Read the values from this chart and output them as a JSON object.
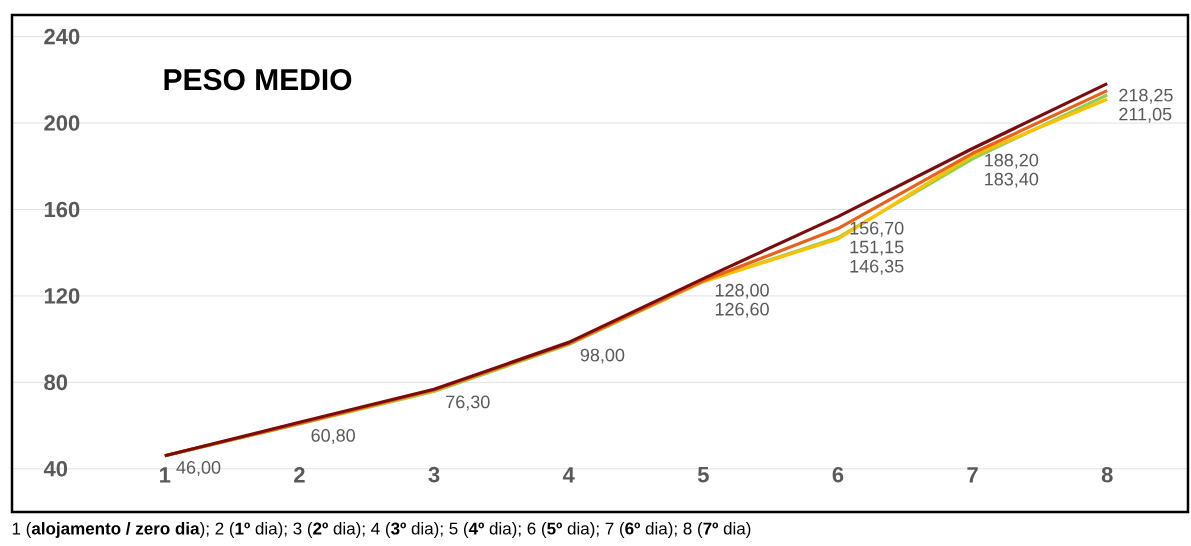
{
  "chart_data": {
    "type": "line",
    "title": "PESO MEDIO",
    "categories": [
      "1",
      "2",
      "3",
      "4",
      "5",
      "6",
      "7",
      "8"
    ],
    "series": [
      {
        "color": "#92d050",
        "values": [
          46,
          60.8,
          75.8,
          97.5,
          126.6,
          147,
          183.4,
          213
        ],
        "value_labels": [
          "46,00",
          "60,80",
          null,
          null,
          "126,60",
          null,
          "183,40",
          null
        ]
      },
      {
        "color": "#ffc000",
        "values": [
          46,
          61,
          76.3,
          98,
          126.6,
          146.35,
          185,
          211.05
        ],
        "value_labels": [
          null,
          null,
          "76,30",
          "98,00",
          null,
          "146,35",
          null,
          "211,05"
        ]
      },
      {
        "color": "#e8621c",
        "values": [
          46,
          61,
          76.5,
          98,
          127,
          151.15,
          186,
          215
        ],
        "value_labels": [
          null,
          null,
          null,
          null,
          null,
          "151,15",
          null,
          null
        ]
      },
      {
        "color": "#7b0c0c",
        "values": [
          46,
          61.5,
          76.8,
          98.5,
          128,
          156.7,
          188.2,
          218.25
        ],
        "value_labels": [
          null,
          null,
          null,
          null,
          "128,00",
          "156,70",
          "188,20",
          "218,25"
        ]
      }
    ],
    "ylim": [
      20,
      250
    ],
    "yticks": [
      40,
      80,
      120,
      160,
      200,
      240
    ],
    "grid": "y",
    "annotations": [
      "1 (**alojamento / zero dia**); 2 (**1º** dia); 3 (**2º** dia); 4 (**3º** dia); 5 (**4º** dia); 6 (**5º** dia); 7 (**6º** dia); 8 (**7º** dia)"
    ]
  }
}
